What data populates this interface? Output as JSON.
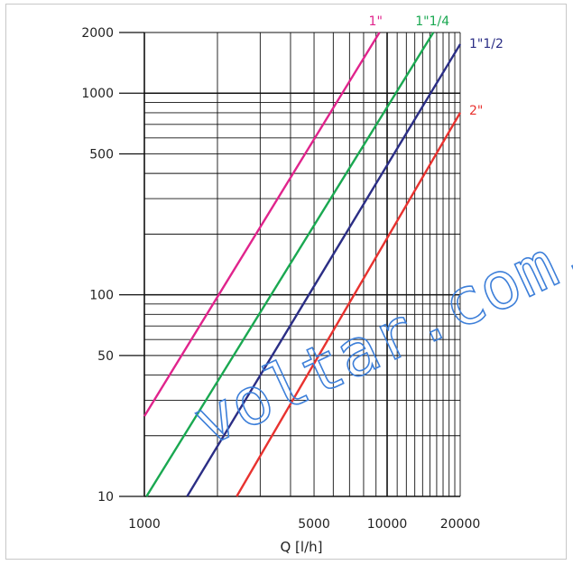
{
  "chart_data": {
    "type": "line",
    "xlabel": "Q [l/h]",
    "ylabel": "",
    "x_scale": "log",
    "y_scale": "log",
    "xlim": [
      1000,
      20000
    ],
    "ylim": [
      10,
      2000
    ],
    "x_ticks": [
      1000,
      5000,
      10000,
      20000
    ],
    "x_tick_labels": [
      "1000",
      "5000",
      "10000",
      "20000"
    ],
    "y_ticks": [
      10,
      50,
      100,
      500,
      1000,
      2000
    ],
    "y_tick_labels": [
      "10",
      "50",
      "100",
      "500",
      "1000",
      "2000"
    ],
    "grid": true,
    "series": [
      {
        "name": "1\"",
        "color": "#e0248c",
        "points": [
          [
            1000,
            25
          ],
          [
            9300,
            2000
          ]
        ]
      },
      {
        "name": "1\"1/4",
        "color": "#1aa851",
        "points": [
          [
            1020,
            10
          ],
          [
            15500,
            2000
          ]
        ]
      },
      {
        "name": "1\"1/2",
        "color": "#2b2e85",
        "points": [
          [
            1500,
            10
          ],
          [
            20000,
            1750
          ]
        ]
      },
      {
        "name": "2\"",
        "color": "#e8322f",
        "points": [
          [
            2400,
            10
          ],
          [
            20000,
            800
          ]
        ]
      }
    ]
  },
  "watermark": {
    "text": "voltar.com.",
    "color": "#3d7fd9"
  }
}
